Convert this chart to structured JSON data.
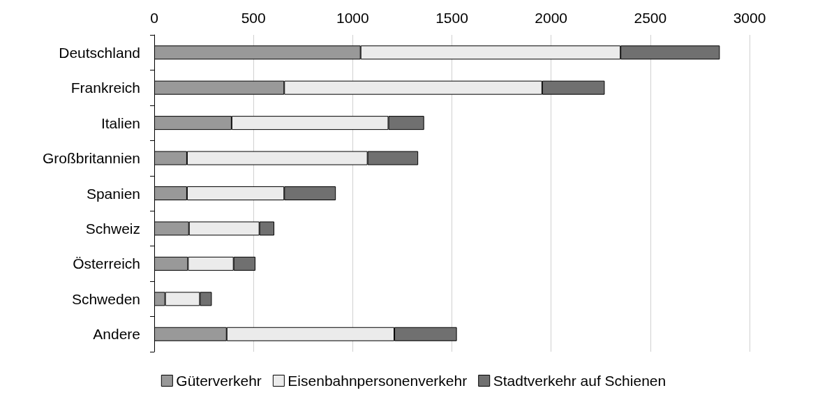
{
  "chart_data": {
    "type": "bar",
    "orientation": "horizontal",
    "stacked": true,
    "categories": [
      "Deutschland",
      "Frankreich",
      "Italien",
      "Großbritannien",
      "Spanien",
      "Schweiz",
      "Österreich",
      "Schweden",
      "Andere"
    ],
    "series": [
      {
        "name": "Güterverkehr",
        "color": "#999999",
        "values": [
          1040,
          655,
          390,
          165,
          165,
          175,
          170,
          55,
          365
        ]
      },
      {
        "name": "Eisenbahnpersonenverkehr",
        "color": "#ebebeb",
        "values": [
          1310,
          1300,
          790,
          910,
          490,
          355,
          230,
          175,
          845
        ]
      },
      {
        "name": "Stadtverkehr auf Schienen",
        "color": "#707070",
        "values": [
          500,
          315,
          180,
          255,
          260,
          75,
          110,
          60,
          315
        ]
      }
    ],
    "xlim": [
      0,
      3000
    ],
    "xticks": [
      0,
      500,
      1000,
      1500,
      2000,
      2500,
      3000
    ],
    "grid": "x",
    "legend": "bottom"
  }
}
